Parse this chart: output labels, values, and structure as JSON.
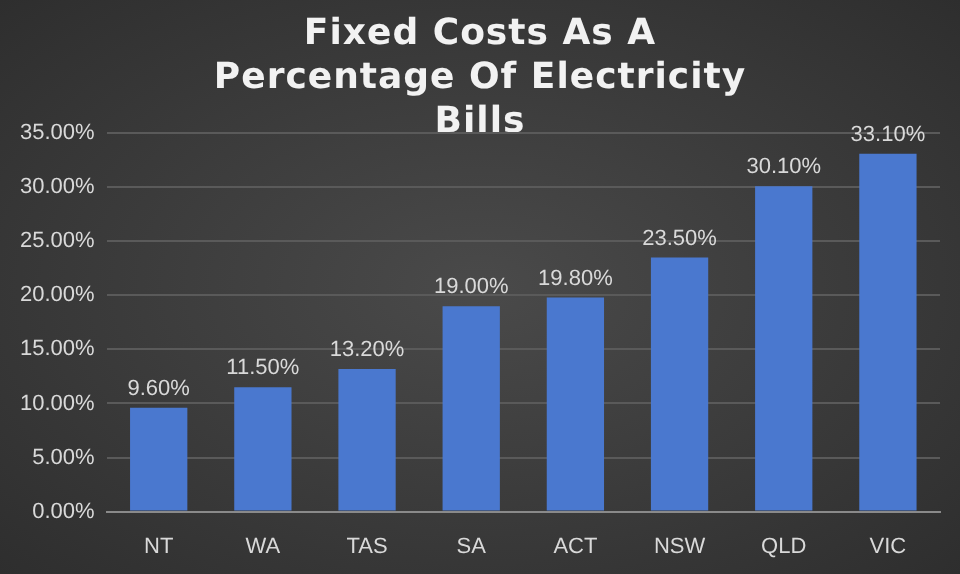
{
  "chart_data": {
    "type": "bar",
    "title": "Fixed Costs As A Percentage Of Electricity Bills",
    "categories": [
      "NT",
      "WA",
      "TAS",
      "SA",
      "ACT",
      "NSW",
      "QLD",
      "VIC"
    ],
    "values": [
      9.6,
      11.5,
      13.2,
      19.0,
      19.8,
      23.5,
      30.1,
      33.1
    ],
    "value_labels": [
      "9.60%",
      "11.50%",
      "13.20%",
      "19.00%",
      "19.80%",
      "23.50%",
      "30.10%",
      "33.10%"
    ],
    "color": "#4a78cf",
    "ylim": [
      0,
      35
    ],
    "yticks": [
      {
        "value": 0,
        "label": "0.00%"
      },
      {
        "value": 5,
        "label": "5.00%"
      },
      {
        "value": 10,
        "label": "10.00%"
      },
      {
        "value": 15,
        "label": "15.00%"
      },
      {
        "value": 20,
        "label": "20.00%"
      },
      {
        "value": 25,
        "label": "25.00%"
      },
      {
        "value": 30,
        "label": "30.00%"
      },
      {
        "value": 35,
        "label": "35.00%"
      }
    ],
    "grid": "y"
  }
}
